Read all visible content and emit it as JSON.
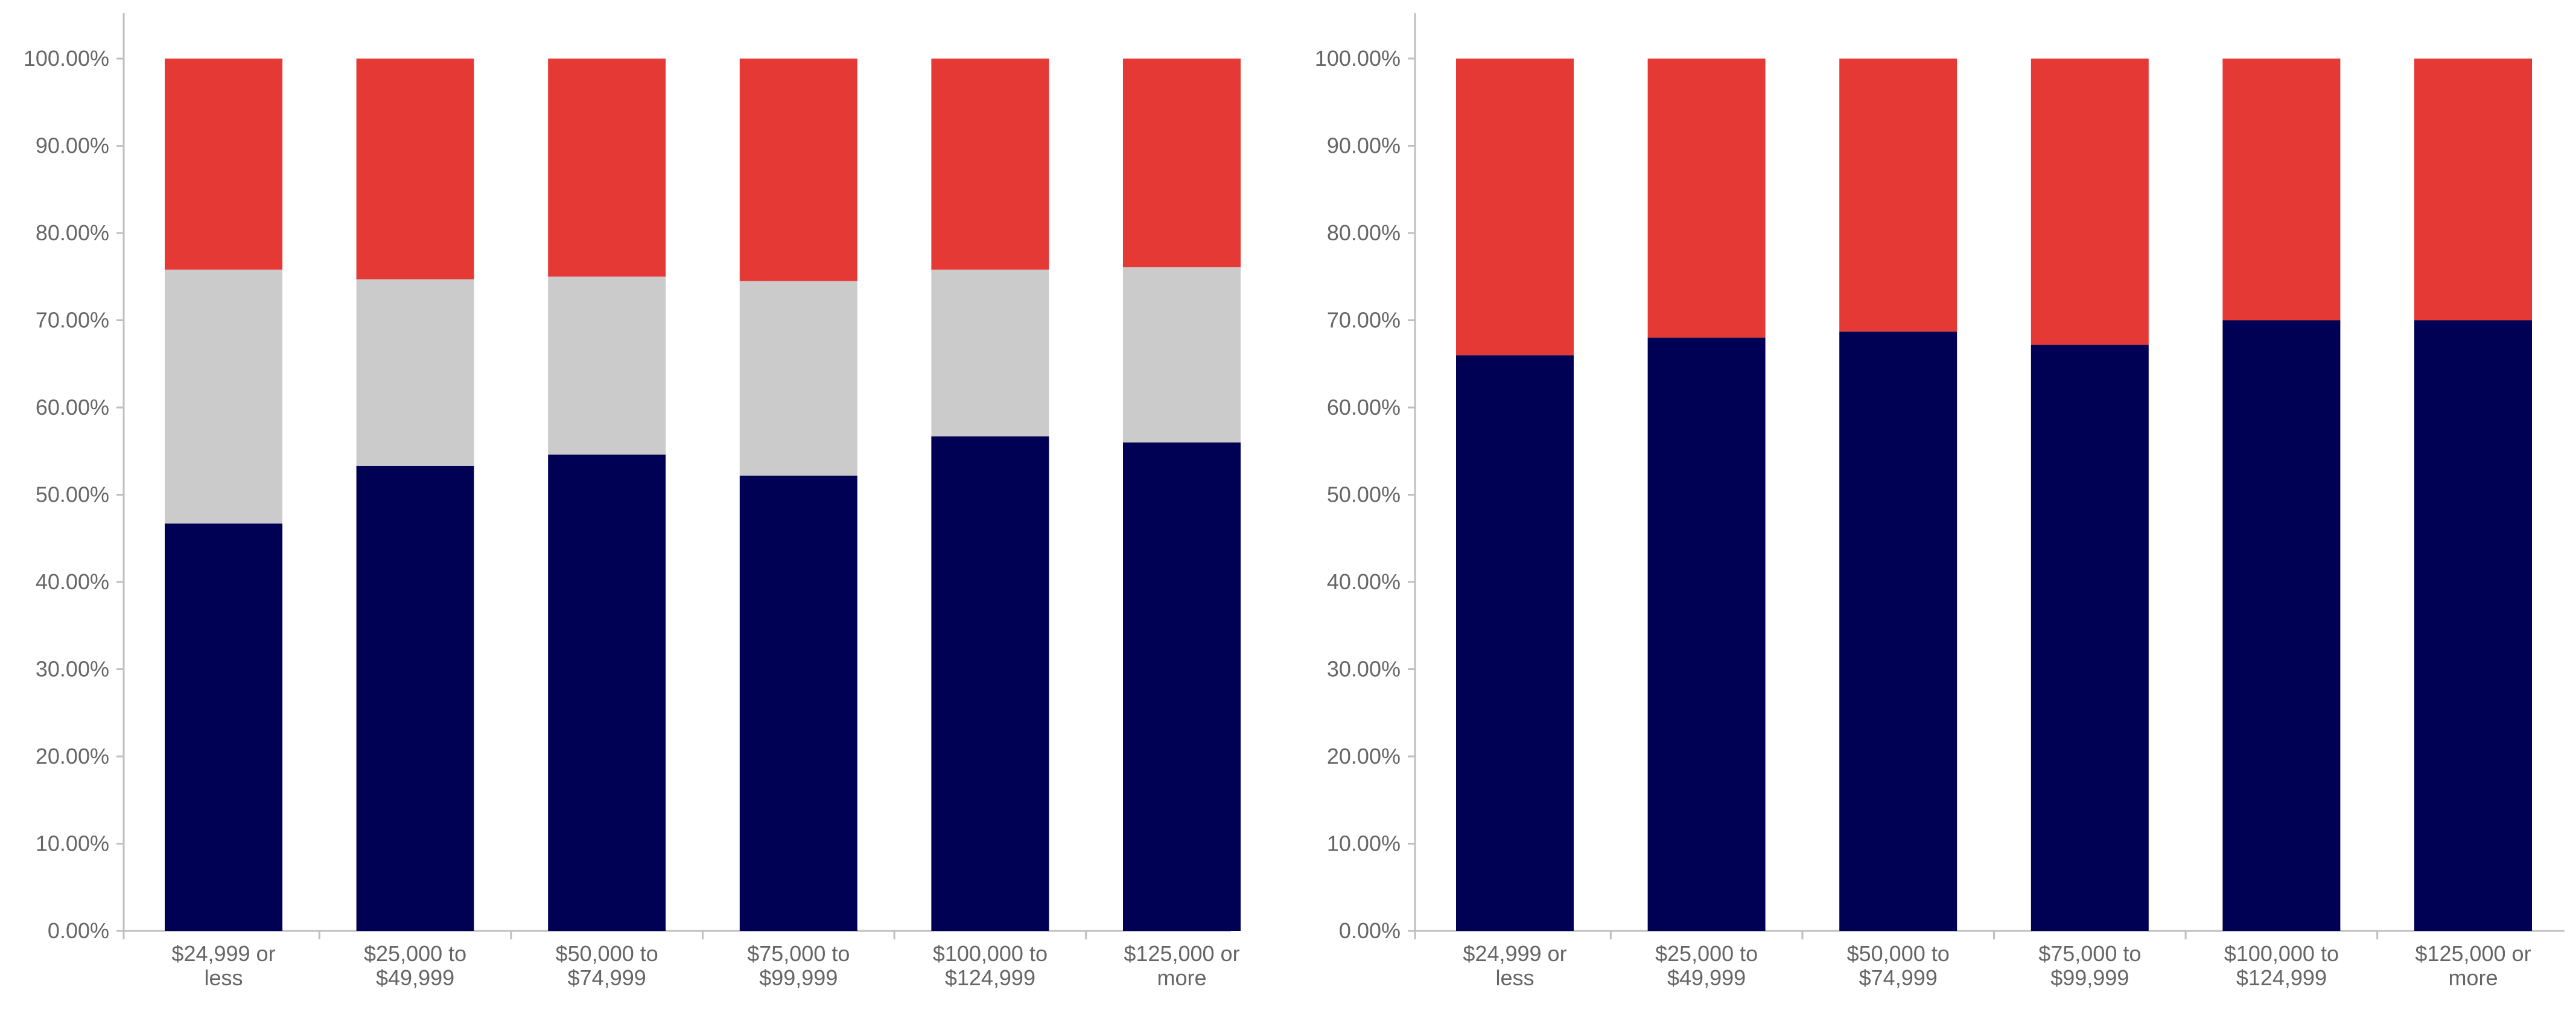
{
  "colors": {
    "navy": "#000055",
    "gray": "#cbcbcb",
    "red": "#e53935"
  },
  "chart_data": [
    {
      "type": "bar",
      "stacked": true,
      "title": "",
      "xlabel": "",
      "ylabel": "",
      "ylim": [
        0,
        1
      ],
      "y_ticks": [
        "0.00%",
        "10.00%",
        "20.00%",
        "30.00%",
        "40.00%",
        "50.00%",
        "60.00%",
        "70.00%",
        "80.00%",
        "90.00%",
        "100.00%"
      ],
      "categories": [
        [
          "$24,999 or",
          "less"
        ],
        [
          "$25,000 to",
          "$49,999"
        ],
        [
          "$50,000 to",
          "$74,999"
        ],
        [
          "$75,000 to",
          "$99,999"
        ],
        [
          "$100,000 to",
          "$124,999"
        ],
        [
          "$125,000 or",
          "more"
        ]
      ],
      "series": [
        {
          "name": "navy",
          "color": "#000055",
          "values": [
            0.467,
            0.533,
            0.546,
            0.522,
            0.567,
            0.56
          ]
        },
        {
          "name": "gray",
          "color": "#cbcbcb",
          "values": [
            0.291,
            0.214,
            0.204,
            0.223,
            0.191,
            0.201
          ]
        },
        {
          "name": "red",
          "color": "#e53935",
          "values": [
            0.242,
            0.253,
            0.25,
            0.255,
            0.242,
            0.239
          ]
        }
      ]
    },
    {
      "type": "bar",
      "stacked": true,
      "title": "",
      "xlabel": "",
      "ylabel": "",
      "ylim": [
        0,
        1
      ],
      "y_ticks": [
        "0.00%",
        "10.00%",
        "20.00%",
        "30.00%",
        "40.00%",
        "50.00%",
        "60.00%",
        "70.00%",
        "80.00%",
        "90.00%",
        "100.00%"
      ],
      "categories": [
        [
          "$24,999 or",
          "less"
        ],
        [
          "$25,000 to",
          "$49,999"
        ],
        [
          "$50,000 to",
          "$74,999"
        ],
        [
          "$75,000 to",
          "$99,999"
        ],
        [
          "$100,000 to",
          "$124,999"
        ],
        [
          "$125,000 or",
          "more"
        ]
      ],
      "series": [
        {
          "name": "navy",
          "color": "#000055",
          "values": [
            0.66,
            0.68,
            0.687,
            0.672,
            0.7,
            0.7
          ]
        },
        {
          "name": "red",
          "color": "#e53935",
          "values": [
            0.34,
            0.32,
            0.313,
            0.328,
            0.3,
            0.3
          ]
        }
      ]
    }
  ]
}
